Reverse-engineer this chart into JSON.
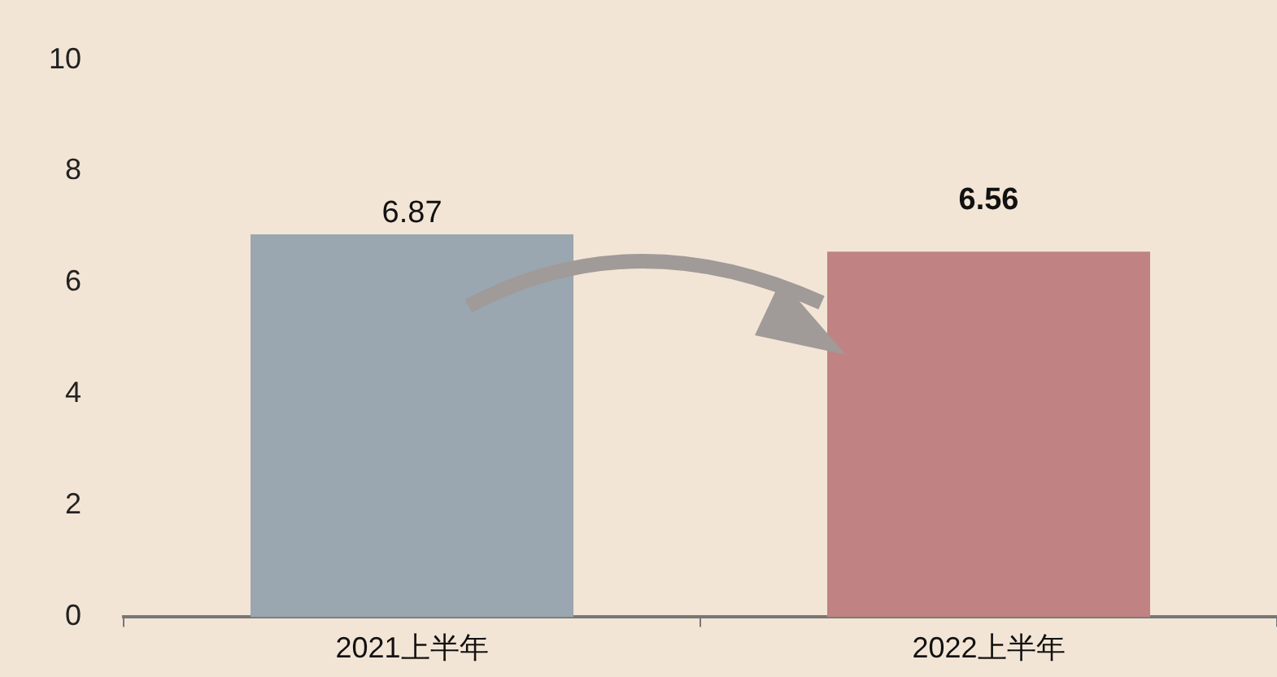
{
  "chart_data": {
    "type": "bar",
    "categories": [
      "2021上半年",
      "2022上半年"
    ],
    "values": [
      6.87,
      6.56
    ],
    "colors": [
      "#9aa6b0",
      "#c08283"
    ],
    "ylim": [
      0,
      10
    ],
    "yticks": [
      0,
      2,
      4,
      6,
      8,
      10
    ],
    "grid": false,
    "legend": false,
    "data_labels": true
  }
}
